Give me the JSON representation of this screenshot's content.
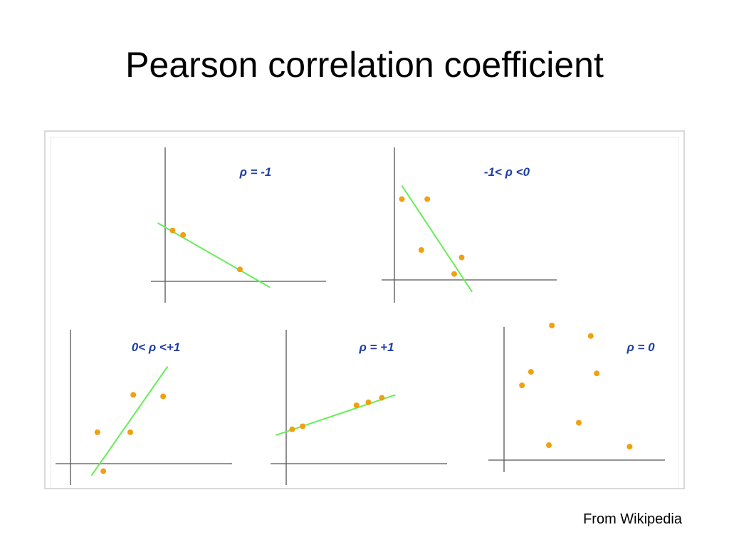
{
  "title": "Pearson correlation coefficient",
  "source": "From Wikipedia",
  "colors": {
    "axis": "#555555",
    "fit_line": "#66ee55",
    "point": "#f0a010",
    "label": "#1f3fa8"
  },
  "chart_data": [
    {
      "type": "scatter",
      "title": "ρ = -1",
      "xlim": [
        0,
        10
      ],
      "ylim": [
        0,
        10
      ],
      "points": [
        {
          "x": 0.5,
          "y": 3.4
        },
        {
          "x": 1.2,
          "y": 3.1
        },
        {
          "x": 5.0,
          "y": 0.8
        }
      ],
      "fit_line": [
        {
          "x": -0.5,
          "y": 3.9
        },
        {
          "x": 7.0,
          "y": -0.4
        }
      ]
    },
    {
      "type": "scatter",
      "title": "-1< ρ <0",
      "xlim": [
        0,
        10
      ],
      "ylim": [
        0,
        10
      ],
      "points": [
        {
          "x": 0.5,
          "y": 5.4
        },
        {
          "x": 2.2,
          "y": 5.4
        },
        {
          "x": 1.8,
          "y": 2.0
        },
        {
          "x": 4.5,
          "y": 1.5
        },
        {
          "x": 4.0,
          "y": 0.4
        }
      ],
      "fit_line": [
        {
          "x": 0.5,
          "y": 6.3
        },
        {
          "x": 5.2,
          "y": -0.8
        }
      ]
    },
    {
      "type": "scatter",
      "title": "0< ρ <+1",
      "xlim": [
        0,
        10
      ],
      "ylim": [
        0,
        10
      ],
      "points": [
        {
          "x": 1.8,
          "y": 2.1
        },
        {
          "x": 2.2,
          "y": -0.5
        },
        {
          "x": 4.2,
          "y": 4.6
        },
        {
          "x": 4.0,
          "y": 2.1
        },
        {
          "x": 6.2,
          "y": 4.5
        }
      ],
      "fit_line": [
        {
          "x": 1.4,
          "y": -0.8
        },
        {
          "x": 6.5,
          "y": 6.5
        }
      ]
    },
    {
      "type": "scatter",
      "title": "ρ = +1",
      "xlim": [
        0,
        10
      ],
      "ylim": [
        0,
        10
      ],
      "points": [
        {
          "x": 0.4,
          "y": 2.3
        },
        {
          "x": 1.1,
          "y": 2.5
        },
        {
          "x": 4.7,
          "y": 3.9
        },
        {
          "x": 5.5,
          "y": 4.1
        },
        {
          "x": 6.4,
          "y": 4.4
        }
      ],
      "fit_line": [
        {
          "x": -0.7,
          "y": 1.9
        },
        {
          "x": 7.3,
          "y": 4.6
        }
      ]
    },
    {
      "type": "scatter",
      "title": "ρ = 0",
      "xlim": [
        0,
        10
      ],
      "ylim": [
        0,
        10
      ],
      "points": [
        {
          "x": 1.2,
          "y": 5.0
        },
        {
          "x": 1.8,
          "y": 5.9
        },
        {
          "x": 3.2,
          "y": 9.0
        },
        {
          "x": 5.8,
          "y": 8.3
        },
        {
          "x": 6.2,
          "y": 5.8
        },
        {
          "x": 5.0,
          "y": 2.5
        },
        {
          "x": 3.0,
          "y": 1.0
        },
        {
          "x": 8.4,
          "y": 0.9
        }
      ]
    }
  ]
}
